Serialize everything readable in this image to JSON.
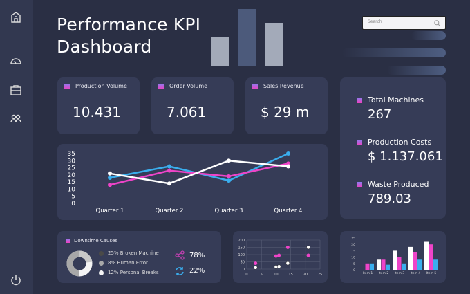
{
  "header": {
    "title_line1": "Performance KPI",
    "title_line2": "Dashboard"
  },
  "search": {
    "placeholder": "Search",
    "icon": "search-icon"
  },
  "sidebar": {
    "icons": [
      "home-icon",
      "speedometer-icon",
      "briefcase-icon",
      "users-icon",
      "power-icon"
    ]
  },
  "kpis": [
    {
      "label": "Production Volume",
      "value": "10.431"
    },
    {
      "label": "Order Volume",
      "value": "7.061"
    },
    {
      "label": "Sales Revenue",
      "value": "$ 29 m"
    }
  ],
  "right_stats": [
    {
      "label": "Total Machines",
      "value": "267"
    },
    {
      "label": "Production Costs",
      "value": "$ 1.137.061"
    },
    {
      "label": "Waste Produced",
      "value": "789.03"
    }
  ],
  "downtime": {
    "title": "Downtime Causes",
    "items": [
      {
        "label": "25% Broken Machine",
        "color": "#4a4a48"
      },
      {
        "label": "8% Human Error",
        "color": "#a8a8a8"
      },
      {
        "label": "12% Personal Breaks",
        "color": "#f4f4f4"
      }
    ],
    "share_pct": "78%",
    "refresh_pct": "22%"
  },
  "colors": {
    "blue": "#3aaeee",
    "pink": "#ee44c8",
    "white": "#ffffff"
  },
  "chart_data": [
    {
      "type": "line",
      "categories": [
        "Quarter 1",
        "Quarter 2",
        "Quarter 3",
        "Quarter 4"
      ],
      "ylim": [
        0,
        35
      ],
      "yticks": [
        0,
        5,
        10,
        15,
        20,
        25,
        30,
        35
      ],
      "series": [
        {
          "color": "#3aaeee",
          "values": [
            18,
            26,
            16,
            35
          ]
        },
        {
          "color": "#ee44c8",
          "values": [
            13,
            23,
            19,
            28
          ]
        },
        {
          "color": "#ffffff",
          "values": [
            21,
            14,
            30,
            26
          ]
        }
      ]
    },
    {
      "type": "scatter",
      "xlim": [
        0,
        25
      ],
      "ylim": [
        0,
        200
      ],
      "xticks": [
        0,
        5,
        10,
        15,
        20,
        25
      ],
      "yticks": [
        0,
        50,
        100,
        150,
        200
      ],
      "grid": true,
      "series": [
        {
          "color": "#ee44c8",
          "points": [
            [
              3,
              40
            ],
            [
              10,
              90
            ],
            [
              11,
              95
            ],
            [
              14,
              150
            ],
            [
              21,
              95
            ]
          ]
        },
        {
          "color": "#ffffff",
          "points": [
            [
              3,
              10
            ],
            [
              10,
              15
            ],
            [
              11,
              18
            ],
            [
              14,
              40
            ],
            [
              21,
              150
            ]
          ]
        }
      ]
    },
    {
      "type": "bar",
      "categories": [
        "Item 1",
        "Item 2",
        "Item 3",
        "Item 4",
        "Item 5"
      ],
      "ylim": [
        0,
        25
      ],
      "yticks": [
        0,
        5,
        10,
        15,
        20,
        25
      ],
      "series": [
        {
          "color": "#ffffff",
          "values": [
            0,
            8,
            15,
            18,
            22
          ]
        },
        {
          "color": "#ee44c8",
          "values": [
            5,
            8,
            10,
            14,
            20
          ]
        },
        {
          "color": "#3aaeee",
          "values": [
            5,
            4,
            5,
            8,
            8
          ]
        }
      ]
    }
  ]
}
